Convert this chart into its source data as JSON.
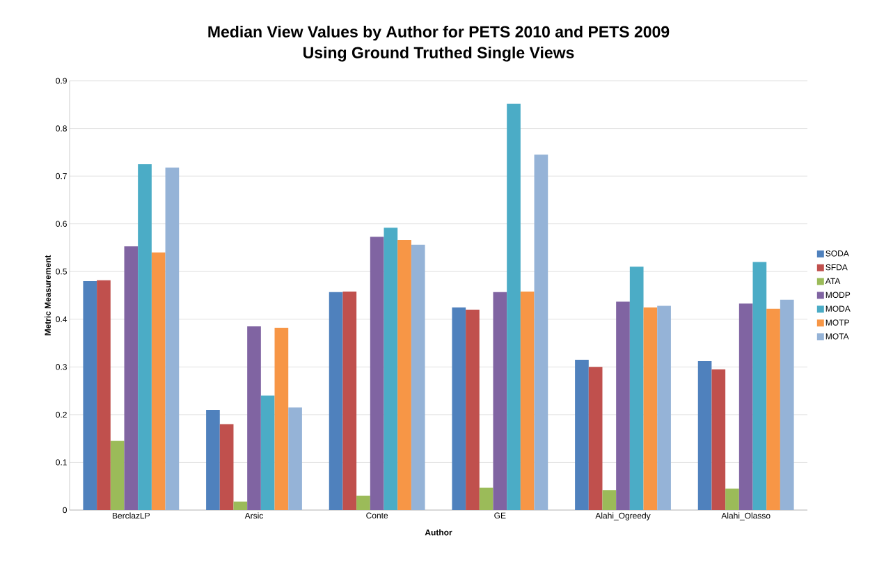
{
  "chart_data": {
    "type": "bar",
    "title": "Median View Values by Author for PETS 2010 and PETS 2009",
    "subtitle": "Using Ground Truthed Single Views",
    "xlabel": "Author",
    "ylabel": "Metric Measurement",
    "categories": [
      "BerclazLP",
      "Arsic",
      "Conte",
      "GE",
      "Alahi_Ogreedy",
      "Alahi_Olasso"
    ],
    "series": [
      {
        "name": "SODA",
        "color": "#4f81bd",
        "values": [
          0.48,
          0.21,
          0.457,
          0.425,
          0.315,
          0.312
        ]
      },
      {
        "name": "SFDA",
        "color": "#c0504d",
        "values": [
          0.482,
          0.18,
          0.458,
          0.42,
          0.3,
          0.295
        ]
      },
      {
        "name": "ATA",
        "color": "#9bbb59",
        "values": [
          0.145,
          0.018,
          0.03,
          0.047,
          0.042,
          0.045
        ]
      },
      {
        "name": "MODP",
        "color": "#8064a2",
        "values": [
          0.553,
          0.385,
          0.573,
          0.457,
          0.437,
          0.433
        ]
      },
      {
        "name": "MODA",
        "color": "#4bacc6",
        "values": [
          0.725,
          0.24,
          0.592,
          0.852,
          0.51,
          0.52
        ]
      },
      {
        "name": "MOTP",
        "color": "#f79646",
        "values": [
          0.54,
          0.382,
          0.566,
          0.458,
          0.425,
          0.422
        ]
      },
      {
        "name": "MOTA",
        "color": "#95b3d7",
        "values": [
          0.718,
          0.215,
          0.556,
          0.745,
          0.428,
          0.441
        ]
      }
    ],
    "ylim": [
      0,
      0.9
    ],
    "yticks": [
      0,
      0.1,
      0.2,
      0.3,
      0.4,
      0.5,
      0.6,
      0.7,
      0.8,
      0.9
    ],
    "grid": "y",
    "legend": "right"
  }
}
